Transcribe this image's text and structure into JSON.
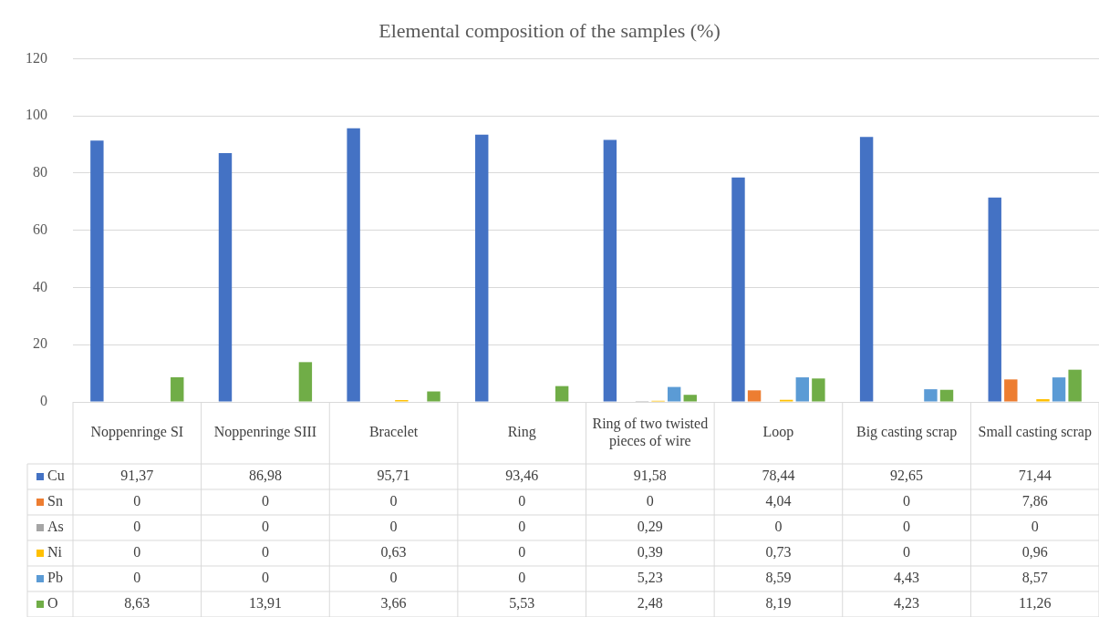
{
  "chart_data": {
    "type": "bar",
    "title": "Elemental composition of the samples (%)",
    "categories": [
      "Noppenringe SI",
      "Noppenringe SIII",
      "Bracelet",
      "Ring",
      "Ring of two twisted pieces of wire",
      "Loop",
      "Big casting scrap",
      "Small casting scrap"
    ],
    "series": [
      {
        "name": "Cu",
        "color": "#4472c4",
        "values": [
          91.37,
          86.98,
          95.71,
          93.46,
          91.58,
          78.44,
          92.65,
          71.44
        ],
        "value_labels": [
          "91,37",
          "86,98",
          "95,71",
          "93,46",
          "91,58",
          "78,44",
          "92,65",
          "71,44"
        ]
      },
      {
        "name": "Sn",
        "color": "#ed7d31",
        "values": [
          0,
          0,
          0,
          0,
          0,
          4.04,
          0,
          7.86
        ],
        "value_labels": [
          "0",
          "0",
          "0",
          "0",
          "0",
          "4,04",
          "0",
          "7,86"
        ]
      },
      {
        "name": "As",
        "color": "#a5a5a5",
        "values": [
          0,
          0,
          0,
          0,
          0.29,
          0,
          0,
          0
        ],
        "value_labels": [
          "0",
          "0",
          "0",
          "0",
          "0,29",
          "0",
          "0",
          "0"
        ]
      },
      {
        "name": "Ni",
        "color": "#ffc000",
        "values": [
          0,
          0,
          0.63,
          0,
          0.39,
          0.73,
          0,
          0.96
        ],
        "value_labels": [
          "0",
          "0",
          "0,63",
          "0",
          "0,39",
          "0,73",
          "0",
          "0,96"
        ]
      },
      {
        "name": "Pb",
        "color": "#5b9bd5",
        "values": [
          0,
          0,
          0,
          0,
          5.23,
          8.59,
          4.43,
          8.57
        ],
        "value_labels": [
          "0",
          "0",
          "0",
          "0",
          "5,23",
          "8,59",
          "4,43",
          "8,57"
        ]
      },
      {
        "name": "O",
        "color": "#70ad47",
        "values": [
          8.63,
          13.91,
          3.66,
          5.53,
          2.48,
          8.19,
          4.23,
          11.26
        ],
        "value_labels": [
          "8,63",
          "13,91",
          "3,66",
          "5,53",
          "2,48",
          "8,19",
          "4,23",
          "11,26"
        ]
      }
    ],
    "ylim": [
      0,
      120
    ],
    "yticks": [
      0,
      20,
      40,
      60,
      80,
      100,
      120
    ],
    "grid": "y",
    "legend": "bottom"
  }
}
